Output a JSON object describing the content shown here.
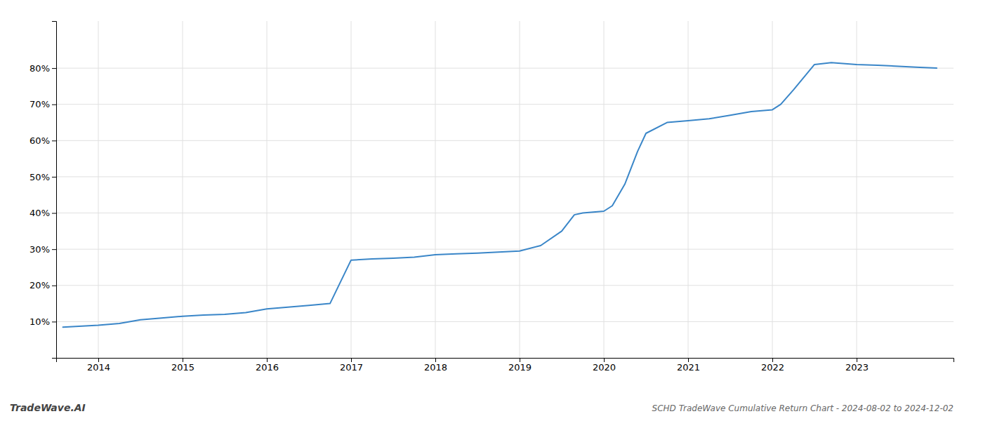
{
  "chart_data": {
    "type": "line",
    "title": "SCHD TradeWave Cumulative Return Chart - 2024-08-02 to 2024-12-02",
    "annotations": [
      "TradeWave.AI"
    ],
    "color": "#3a86c8",
    "x": [
      2013.58,
      2014.0,
      2014.25,
      2014.5,
      2014.75,
      2015.0,
      2015.25,
      2015.5,
      2015.75,
      2016.0,
      2016.25,
      2016.5,
      2016.75,
      2017.0,
      2017.25,
      2017.5,
      2017.75,
      2018.0,
      2018.25,
      2018.5,
      2018.75,
      2019.0,
      2019.25,
      2019.5,
      2019.65,
      2019.75,
      2020.0,
      2020.1,
      2020.25,
      2020.4,
      2020.5,
      2020.75,
      2021.0,
      2021.25,
      2021.5,
      2021.75,
      2022.0,
      2022.1,
      2022.25,
      2022.5,
      2022.7,
      2023.0,
      2023.25,
      2023.5,
      2023.75,
      2023.95
    ],
    "values": [
      8.5,
      9.0,
      9.5,
      10.5,
      11.0,
      11.5,
      11.8,
      12.0,
      12.5,
      13.5,
      14.0,
      14.5,
      15.0,
      27.0,
      27.3,
      27.5,
      27.8,
      28.5,
      28.7,
      28.9,
      29.2,
      29.5,
      31.0,
      35.0,
      39.5,
      40.0,
      40.5,
      42.0,
      48.0,
      57.0,
      62.0,
      65.0,
      65.5,
      66.0,
      67.0,
      68.0,
      68.5,
      70.0,
      74.0,
      81.0,
      81.5,
      81.0,
      80.8,
      80.5,
      80.2,
      80.0
    ],
    "xlim": [
      2013.5,
      2024.15
    ],
    "xticks": [
      2014,
      2015,
      2016,
      2017,
      2018,
      2019,
      2020,
      2021,
      2022,
      2023
    ],
    "ylim": [
      0,
      93
    ],
    "yticks": [
      {
        "value": 10,
        "label": "10%"
      },
      {
        "value": 20,
        "label": "20%"
      },
      {
        "value": 30,
        "label": "30%"
      },
      {
        "value": 40,
        "label": "40%"
      },
      {
        "value": 50,
        "label": "50%"
      },
      {
        "value": 60,
        "label": "60%"
      },
      {
        "value": 70,
        "label": "70%"
      },
      {
        "value": 80,
        "label": "80%"
      }
    ],
    "grid": true
  }
}
